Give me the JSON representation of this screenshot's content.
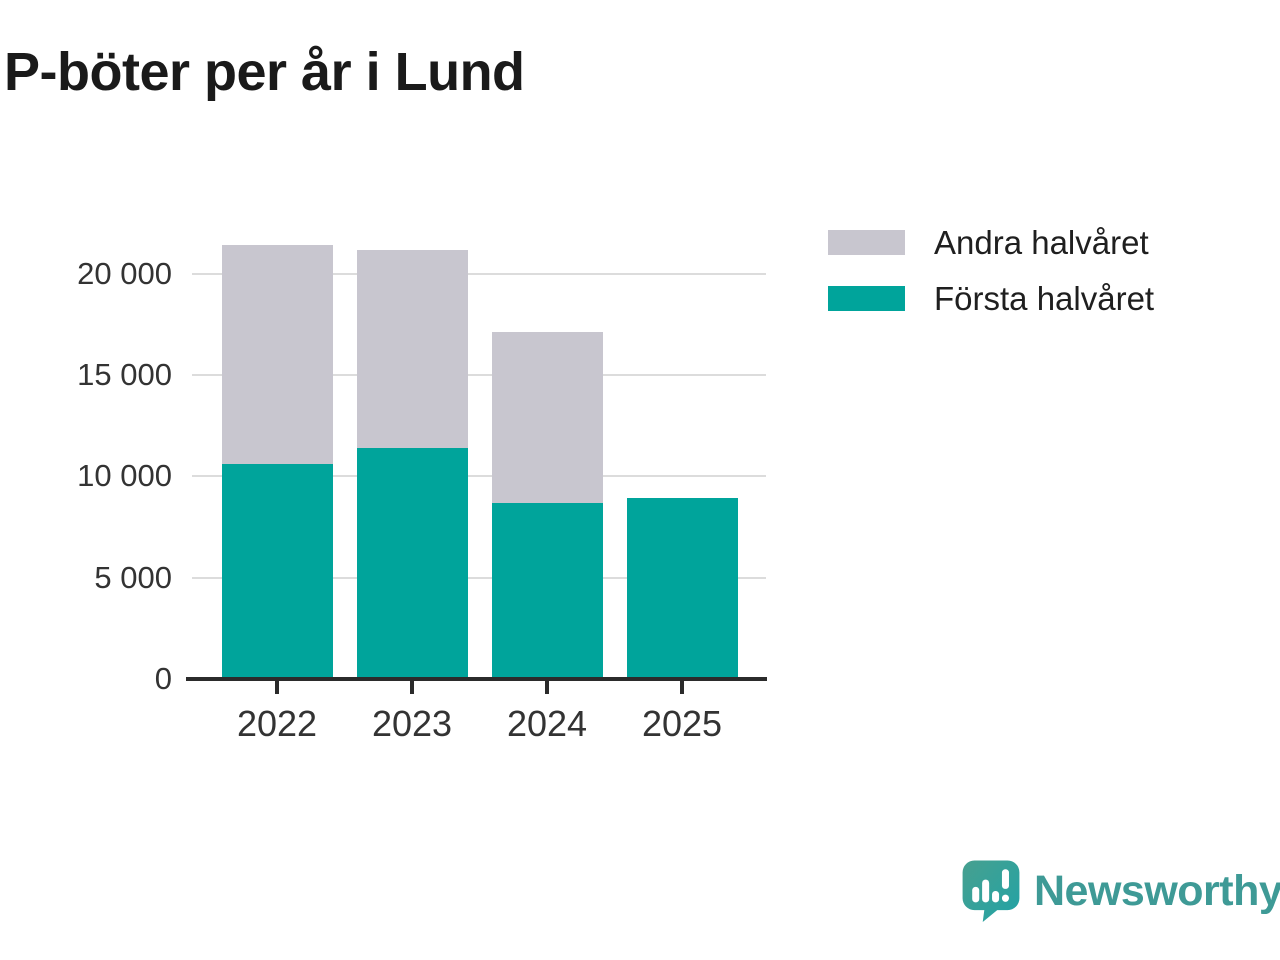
{
  "chart_data": {
    "type": "bar",
    "stacked": true,
    "title": "P-böter per år i Lund",
    "categories": [
      "2022",
      "2023",
      "2024",
      "2025"
    ],
    "series": [
      {
        "name": "Första halvåret",
        "color": "#00A49B",
        "values": [
          10600,
          11400,
          8700,
          8950
        ]
      },
      {
        "name": "Andra halvåret",
        "color": "#C8C6CF",
        "values": [
          10800,
          9750,
          8400,
          0
        ]
      }
    ],
    "totals": [
      21400,
      21150,
      17100,
      8950
    ],
    "xlabel": "",
    "ylabel": "",
    "yticks": [
      0,
      5000,
      10000,
      15000,
      20000
    ],
    "ytick_labels": [
      "0",
      "5 000",
      "10 000",
      "15 000",
      "20 000"
    ],
    "ylim": [
      0,
      21860
    ],
    "grid": true,
    "legend_position": "top-right",
    "legend_order": [
      "Andra halvåret",
      "Första halvåret"
    ]
  },
  "branding": {
    "wordmark": "Newsworthy",
    "icon": "newsworthy-speech-bubble-chart-icon"
  },
  "colors": {
    "first_half": "#00A49B",
    "second_half": "#C8C6CF",
    "axis": "#2B2B2B",
    "grid": "#DCDCDC",
    "title_text": "#1A1A1A",
    "tick_text": "#333333",
    "logo": "#3E9A96"
  }
}
